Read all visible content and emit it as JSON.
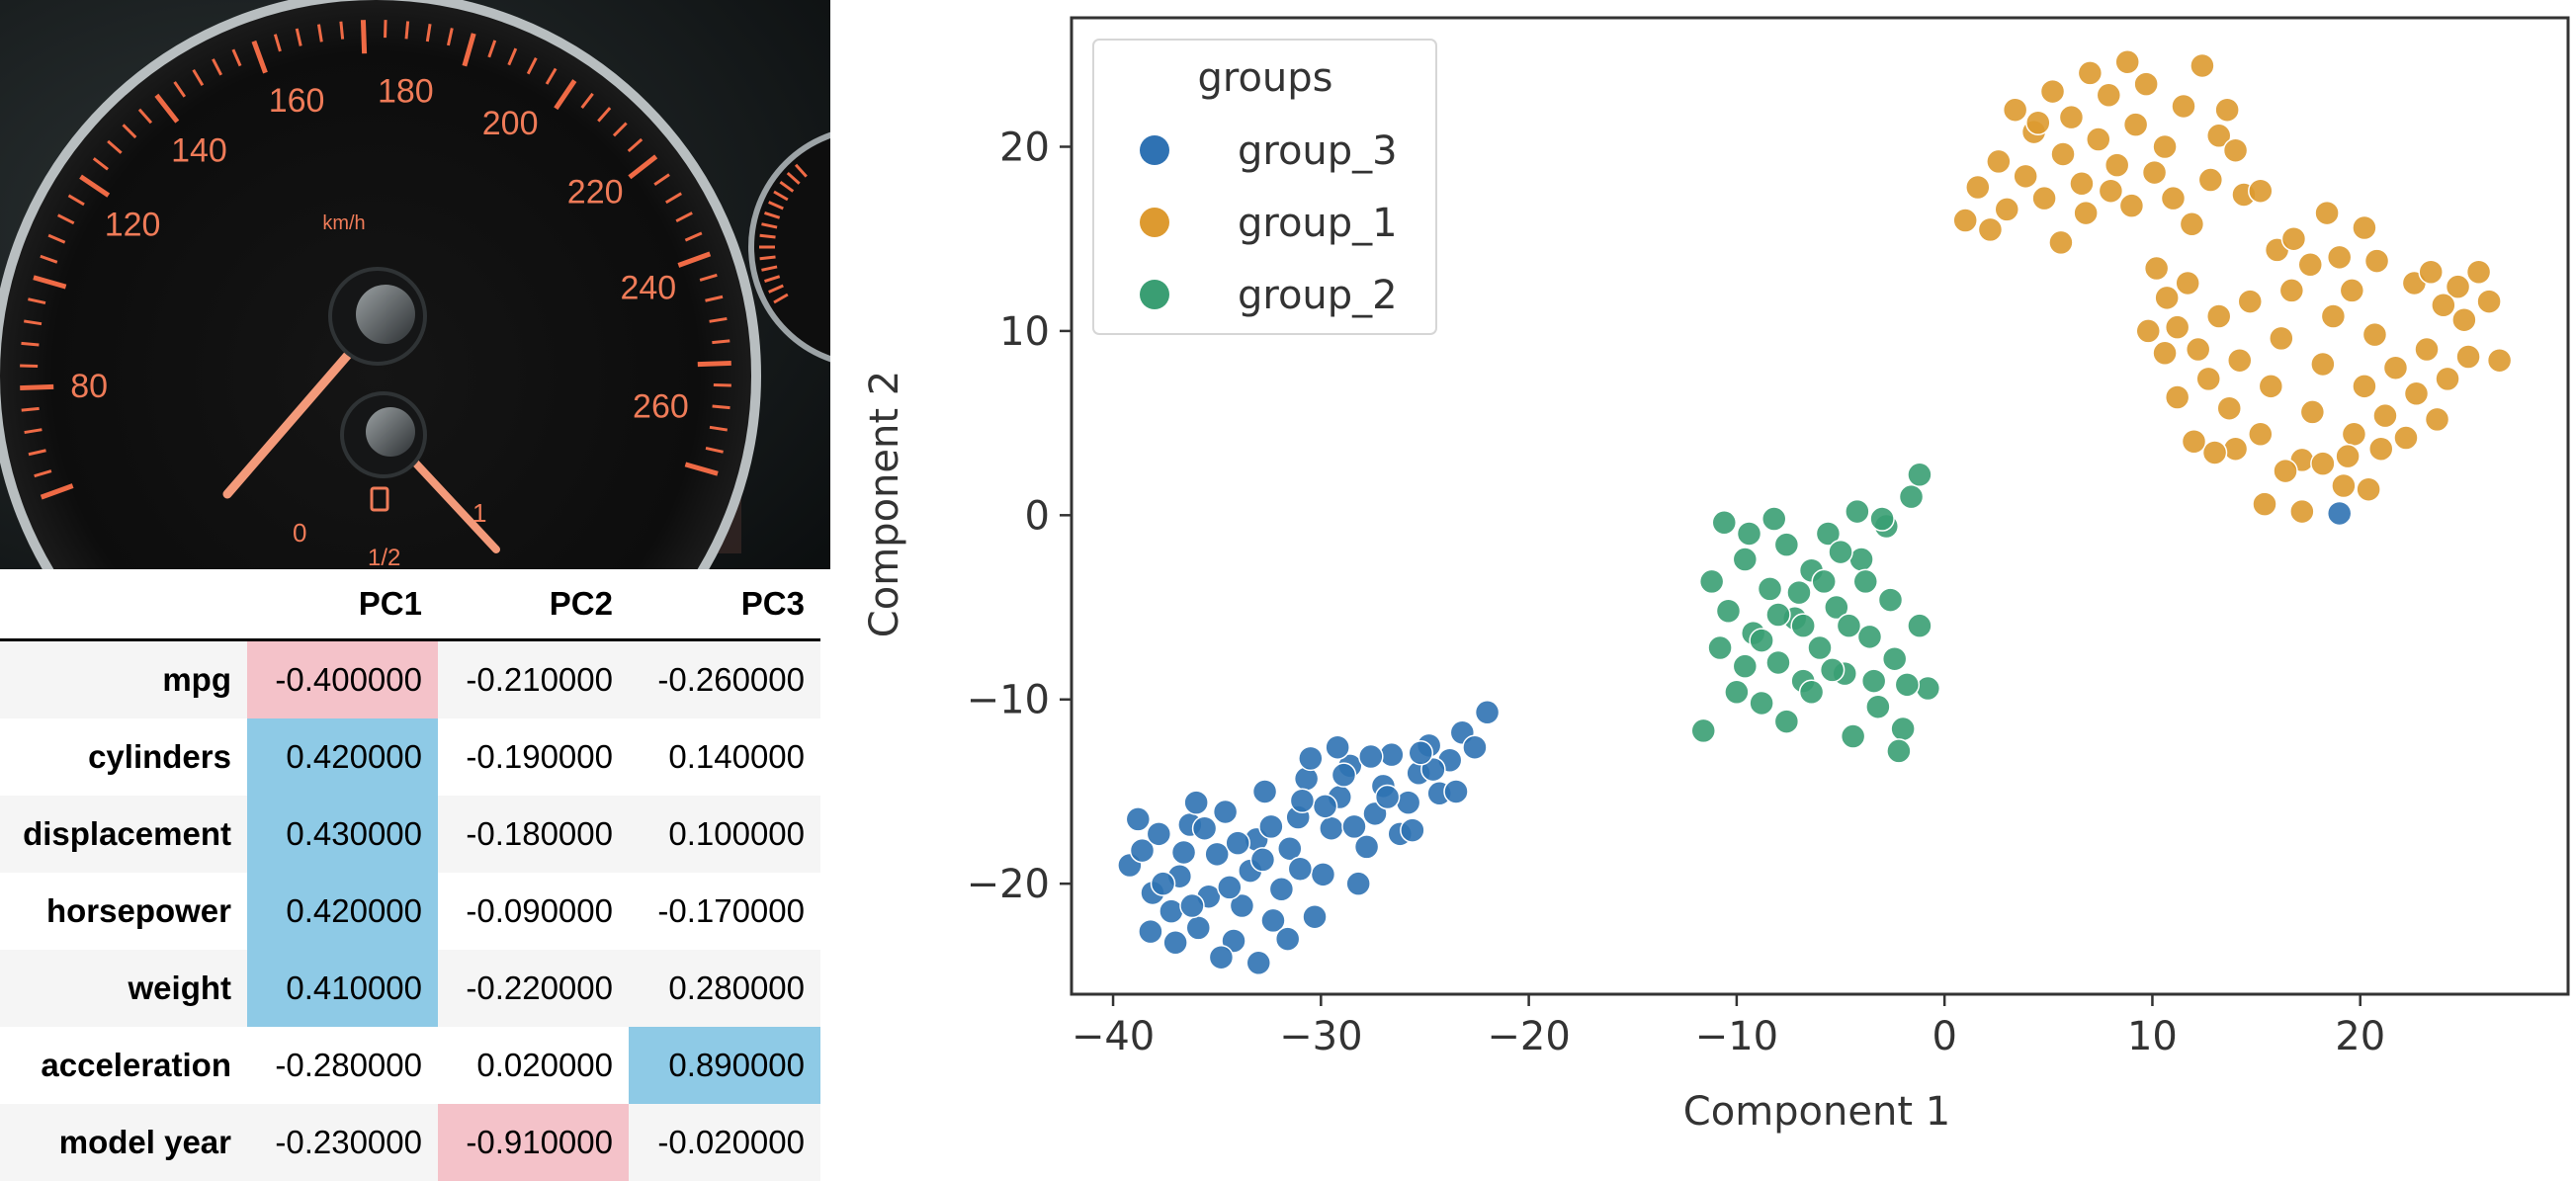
{
  "photo": {
    "subject": "car speedometer",
    "dial_unit": "km/h",
    "dial_numbers": [
      "80",
      "120",
      "140",
      "160",
      "180",
      "200",
      "220",
      "240",
      "260"
    ],
    "fuel_gauge": [
      "0",
      "1/2",
      "1"
    ]
  },
  "colors": {
    "group_3": "#2f72b3",
    "group_1": "#dd9a30",
    "group_2": "#3a9e73",
    "neg_highlight": "#f4c2c9",
    "pos_highlight": "#8ecae6"
  },
  "table": {
    "columns": [
      "",
      "PC1",
      "PC2",
      "PC3"
    ],
    "rows": [
      {
        "name": "mpg",
        "values": [
          "-0.400000",
          "-0.210000",
          "-0.260000"
        ],
        "highlight": [
          "neg",
          "",
          ""
        ]
      },
      {
        "name": "cylinders",
        "values": [
          "0.420000",
          "-0.190000",
          "0.140000"
        ],
        "highlight": [
          "pos",
          "",
          ""
        ]
      },
      {
        "name": "displacement",
        "values": [
          "0.430000",
          "-0.180000",
          "0.100000"
        ],
        "highlight": [
          "pos",
          "",
          ""
        ]
      },
      {
        "name": "horsepower",
        "values": [
          "0.420000",
          "-0.090000",
          "-0.170000"
        ],
        "highlight": [
          "pos",
          "",
          ""
        ]
      },
      {
        "name": "weight",
        "values": [
          "0.410000",
          "-0.220000",
          "0.280000"
        ],
        "highlight": [
          "pos",
          "",
          ""
        ]
      },
      {
        "name": "acceleration",
        "values": [
          "-0.280000",
          "0.020000",
          "0.890000"
        ],
        "highlight": [
          "",
          "",
          "pos"
        ]
      },
      {
        "name": "model year",
        "values": [
          "-0.230000",
          "-0.910000",
          "-0.020000"
        ],
        "highlight": [
          "",
          "neg",
          ""
        ]
      }
    ]
  },
  "chart_data": {
    "type": "scatter",
    "title": "",
    "xlabel": "Component 1",
    "ylabel": "Component 2",
    "xlim": [
      -42,
      30
    ],
    "ylim": [
      -26,
      27
    ],
    "xticks": [
      "−40",
      "−30",
      "−20",
      "−10",
      "0",
      "10",
      "20"
    ],
    "yticks": [
      "−20",
      "−10",
      "0",
      "10",
      "20"
    ],
    "grid": false,
    "legend": {
      "title": "groups",
      "position": "top-left",
      "entries": [
        "group_3",
        "group_1",
        "group_2"
      ]
    },
    "series": [
      {
        "name": "group_3",
        "color": "#2f72b3",
        "points": [
          [
            -39.2,
            -19.0
          ],
          [
            -38.6,
            -18.2
          ],
          [
            -38.1,
            -20.5
          ],
          [
            -37.8,
            -17.3
          ],
          [
            -37.2,
            -21.5
          ],
          [
            -36.8,
            -19.6
          ],
          [
            -36.3,
            -16.8
          ],
          [
            -35.9,
            -22.4
          ],
          [
            -35.4,
            -20.7
          ],
          [
            -35.0,
            -18.4
          ],
          [
            -34.6,
            -16.1
          ],
          [
            -34.2,
            -23.1
          ],
          [
            -33.8,
            -21.2
          ],
          [
            -33.4,
            -19.3
          ],
          [
            -33.1,
            -17.6
          ],
          [
            -32.7,
            -15.0
          ],
          [
            -32.3,
            -22.0
          ],
          [
            -31.9,
            -20.3
          ],
          [
            -31.5,
            -18.1
          ],
          [
            -31.1,
            -16.4
          ],
          [
            -30.7,
            -14.3
          ],
          [
            -30.3,
            -21.8
          ],
          [
            -29.9,
            -19.5
          ],
          [
            -29.5,
            -17.0
          ],
          [
            -29.1,
            -15.3
          ],
          [
            -28.6,
            -13.6
          ],
          [
            -28.2,
            -20.0
          ],
          [
            -27.8,
            -18.0
          ],
          [
            -27.4,
            -16.2
          ],
          [
            -27.0,
            -14.7
          ],
          [
            -26.6,
            -13.0
          ],
          [
            -26.2,
            -17.3
          ],
          [
            -25.8,
            -15.6
          ],
          [
            -25.3,
            -14.0
          ],
          [
            -24.8,
            -12.5
          ],
          [
            -24.3,
            -15.1
          ],
          [
            -23.8,
            -13.3
          ],
          [
            -23.2,
            -11.8
          ],
          [
            -22.6,
            -12.6
          ],
          [
            -22.0,
            -10.7
          ],
          [
            -38.8,
            -16.5
          ],
          [
            -37.0,
            -23.2
          ],
          [
            -36.0,
            -15.6
          ],
          [
            -34.8,
            -24.0
          ],
          [
            -33.0,
            -24.3
          ],
          [
            -31.6,
            -23.0
          ],
          [
            -30.5,
            -13.2
          ],
          [
            -29.2,
            -12.6
          ],
          [
            -27.6,
            -13.1
          ],
          [
            -25.6,
            -17.1
          ],
          [
            -24.6,
            -13.8
          ],
          [
            -23.5,
            -15.0
          ],
          [
            -37.6,
            -20.0
          ],
          [
            -36.6,
            -18.3
          ],
          [
            -35.6,
            -17.0
          ],
          [
            -34.0,
            -17.8
          ],
          [
            -32.4,
            -16.9
          ],
          [
            -31.0,
            -19.2
          ],
          [
            -29.8,
            -15.8
          ],
          [
            -28.4,
            -16.9
          ],
          [
            -26.8,
            -15.3
          ],
          [
            -25.2,
            -12.9
          ],
          [
            -38.2,
            -22.6
          ],
          [
            -36.2,
            -21.2
          ],
          [
            -34.4,
            -20.2
          ],
          [
            -32.8,
            -18.7
          ],
          [
            -30.9,
            -15.5
          ],
          [
            -28.9,
            -14.1
          ],
          [
            19.0,
            0.1
          ]
        ]
      },
      {
        "name": "group_1",
        "color": "#dd9a30",
        "points": [
          [
            1.0,
            16.0
          ],
          [
            1.6,
            17.8
          ],
          [
            2.2,
            15.5
          ],
          [
            2.6,
            19.2
          ],
          [
            3.0,
            16.6
          ],
          [
            3.4,
            22.0
          ],
          [
            3.9,
            18.4
          ],
          [
            4.3,
            20.8
          ],
          [
            4.8,
            17.2
          ],
          [
            5.2,
            23.0
          ],
          [
            5.7,
            19.6
          ],
          [
            6.1,
            21.6
          ],
          [
            6.6,
            18.0
          ],
          [
            7.0,
            24.0
          ],
          [
            7.4,
            20.4
          ],
          [
            7.9,
            22.8
          ],
          [
            8.3,
            19.0
          ],
          [
            8.8,
            24.6
          ],
          [
            9.2,
            21.2
          ],
          [
            9.7,
            23.4
          ],
          [
            10.1,
            18.6
          ],
          [
            10.6,
            20.0
          ],
          [
            11.0,
            17.2
          ],
          [
            11.5,
            22.2
          ],
          [
            11.9,
            15.8
          ],
          [
            12.4,
            24.4
          ],
          [
            12.8,
            18.2
          ],
          [
            13.2,
            20.6
          ],
          [
            6.8,
            16.4
          ],
          [
            5.6,
            14.8
          ],
          [
            9.0,
            16.8
          ],
          [
            8.0,
            17.6
          ],
          [
            4.5,
            21.3
          ],
          [
            10.2,
            13.4
          ],
          [
            10.7,
            11.8
          ],
          [
            11.2,
            10.2
          ],
          [
            11.7,
            12.6
          ],
          [
            12.2,
            9.0
          ],
          [
            12.7,
            7.4
          ],
          [
            13.2,
            10.8
          ],
          [
            13.7,
            5.8
          ],
          [
            14.2,
            8.4
          ],
          [
            14.7,
            11.6
          ],
          [
            15.2,
            4.4
          ],
          [
            15.7,
            7.0
          ],
          [
            16.2,
            9.6
          ],
          [
            16.7,
            12.2
          ],
          [
            17.2,
            3.0
          ],
          [
            17.7,
            5.6
          ],
          [
            18.2,
            8.2
          ],
          [
            18.7,
            10.8
          ],
          [
            19.2,
            1.6
          ],
          [
            19.7,
            4.4
          ],
          [
            20.2,
            7.0
          ],
          [
            20.7,
            9.8
          ],
          [
            21.2,
            5.4
          ],
          [
            21.7,
            8.0
          ],
          [
            22.2,
            4.2
          ],
          [
            22.7,
            6.6
          ],
          [
            23.2,
            9.0
          ],
          [
            23.7,
            5.2
          ],
          [
            24.2,
            7.4
          ],
          [
            24.7,
            12.4
          ],
          [
            25.2,
            8.6
          ],
          [
            25.7,
            13.2
          ],
          [
            26.2,
            11.6
          ],
          [
            26.7,
            8.4
          ],
          [
            16.0,
            14.4
          ],
          [
            16.8,
            15.0
          ],
          [
            17.6,
            13.6
          ],
          [
            18.4,
            16.4
          ],
          [
            19.0,
            14.0
          ],
          [
            19.6,
            12.2
          ],
          [
            20.2,
            15.6
          ],
          [
            20.8,
            13.8
          ],
          [
            15.4,
            0.6
          ],
          [
            16.4,
            2.4
          ],
          [
            17.2,
            0.2
          ],
          [
            18.2,
            2.8
          ],
          [
            19.4,
            3.2
          ],
          [
            20.4,
            1.4
          ],
          [
            21.0,
            3.6
          ],
          [
            14.0,
            3.6
          ],
          [
            13.0,
            3.4
          ],
          [
            12.0,
            4.0
          ],
          [
            11.2,
            6.4
          ],
          [
            10.6,
            8.8
          ],
          [
            9.8,
            10.0
          ],
          [
            22.6,
            12.6
          ],
          [
            23.4,
            13.2
          ],
          [
            24.0,
            11.4
          ],
          [
            25.0,
            10.6
          ],
          [
            14.4,
            17.4
          ],
          [
            14.0,
            19.8
          ],
          [
            13.6,
            22.0
          ],
          [
            15.2,
            17.6
          ]
        ]
      },
      {
        "name": "group_2",
        "color": "#3a9e73",
        "points": [
          [
            -11.6,
            -11.7
          ],
          [
            -11.2,
            -3.6
          ],
          [
            -10.8,
            -7.2
          ],
          [
            -10.4,
            -5.2
          ],
          [
            -10.0,
            -9.6
          ],
          [
            -9.6,
            -2.4
          ],
          [
            -9.2,
            -6.4
          ],
          [
            -8.8,
            -10.2
          ],
          [
            -8.4,
            -4.0
          ],
          [
            -8.0,
            -8.0
          ],
          [
            -7.6,
            -1.6
          ],
          [
            -7.2,
            -5.6
          ],
          [
            -6.8,
            -9.0
          ],
          [
            -6.4,
            -3.0
          ],
          [
            -6.0,
            -7.2
          ],
          [
            -5.6,
            -1.0
          ],
          [
            -5.2,
            -5.0
          ],
          [
            -4.8,
            -8.6
          ],
          [
            -4.4,
            -12.0
          ],
          [
            -4.0,
            -2.4
          ],
          [
            -3.6,
            -6.6
          ],
          [
            -3.2,
            -10.4
          ],
          [
            -2.8,
            -0.6
          ],
          [
            -2.4,
            -7.8
          ],
          [
            -2.0,
            -11.6
          ],
          [
            -1.6,
            1.0
          ],
          [
            -1.2,
            -6.0
          ],
          [
            -0.8,
            -9.4
          ],
          [
            -1.2,
            2.2
          ],
          [
            -2.2,
            -12.8
          ],
          [
            -10.6,
            -0.4
          ],
          [
            -9.4,
            -1.0
          ],
          [
            -8.2,
            -0.2
          ],
          [
            -7.0,
            -4.2
          ],
          [
            -5.8,
            -3.6
          ],
          [
            -4.6,
            -6.0
          ],
          [
            -3.4,
            -9.0
          ],
          [
            -6.4,
            -9.6
          ],
          [
            -7.6,
            -11.2
          ],
          [
            -8.8,
            -6.8
          ],
          [
            -9.6,
            -8.2
          ],
          [
            -5.0,
            -2.0
          ],
          [
            -3.8,
            -3.6
          ],
          [
            -4.2,
            0.2
          ],
          [
            -3.0,
            -0.2
          ],
          [
            -2.6,
            -4.6
          ],
          [
            -1.8,
            -9.2
          ],
          [
            -6.8,
            -6.0
          ],
          [
            -5.4,
            -8.4
          ],
          [
            -8.0,
            -5.4
          ]
        ]
      }
    ]
  }
}
